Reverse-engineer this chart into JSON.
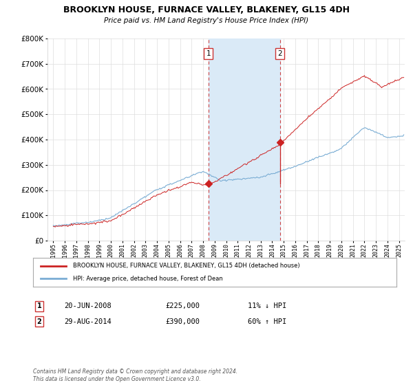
{
  "title": "BROOKLYN HOUSE, FURNACE VALLEY, BLAKENEY, GL15 4DH",
  "subtitle": "Price paid vs. HM Land Registry's House Price Index (HPI)",
  "legend_line1": "BROOKLYN HOUSE, FURNACE VALLEY, BLAKENEY, GL15 4DH (detached house)",
  "legend_line2": "HPI: Average price, detached house, Forest of Dean",
  "footer": "Contains HM Land Registry data © Crown copyright and database right 2024.\nThis data is licensed under the Open Government Licence v3.0.",
  "sale1_date": "20-JUN-2008",
  "sale1_price": "£225,000",
  "sale1_hpi": "11% ↓ HPI",
  "sale2_date": "29-AUG-2014",
  "sale2_price": "£390,000",
  "sale2_hpi": "60% ↑ HPI",
  "sale1_year": 2008.47,
  "sale1_value": 225000,
  "sale2_year": 2014.66,
  "sale2_value": 390000,
  "hpi_color": "#7aadd4",
  "property_color": "#cc2222",
  "shade_color": "#daeaf7",
  "vline_color": "#cc3333",
  "ylim": [
    0,
    800000
  ],
  "xlim_start": 1994.5,
  "xlim_end": 2025.5,
  "background_color": "#ffffff",
  "grid_color": "#dddddd"
}
